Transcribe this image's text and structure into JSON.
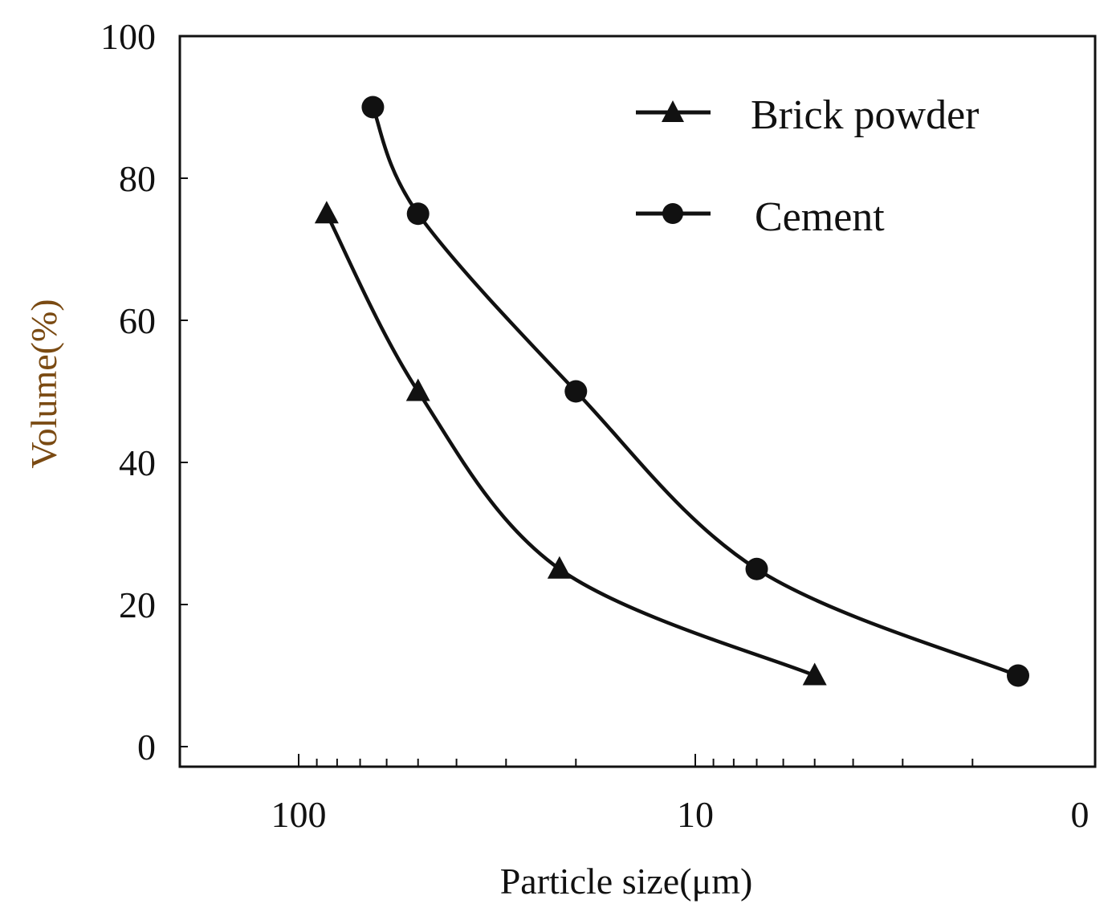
{
  "chart_data": {
    "type": "line",
    "title": "",
    "xlabel": "Particle size(μm)",
    "ylabel": "Volume(%)",
    "xscale": "log, reversed",
    "xlim": [
      100,
      1
    ],
    "ylim": [
      0,
      100
    ],
    "x_tick_labels": [
      "100",
      "10",
      "0"
    ],
    "y_tick_labels": [
      "0",
      "20",
      "40",
      "60",
      "80",
      "100"
    ],
    "y_ticks": [
      0,
      20,
      40,
      60,
      80,
      100
    ],
    "grid": false,
    "legend_position": "top-right",
    "series": [
      {
        "name": "Brick powder",
        "marker": "triangle",
        "x": [
          85,
          50,
          22,
          5
        ],
        "y": [
          75,
          50,
          25,
          10
        ]
      },
      {
        "name": "Cement",
        "marker": "circle",
        "x": [
          65,
          50,
          20,
          7
        ],
        "y": [
          90,
          75,
          50,
          25
        ]
      }
    ],
    "cement_extra_point": {
      "x_label": "near 0",
      "y": 10
    },
    "colors": {
      "line": "#111111",
      "ylabel": "#7a4a12"
    }
  }
}
